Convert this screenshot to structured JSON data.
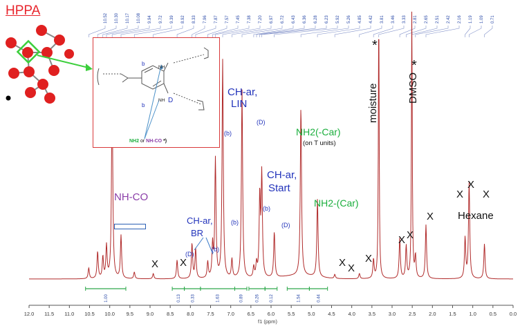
{
  "chart_data": {
    "type": "line",
    "title": "HPPA",
    "xlabel": "f1 (ppm)",
    "xlim": [
      12.0,
      0.0
    ],
    "x_reversed": true,
    "x_ticks": [
      "12.0",
      "11.5",
      "11.0",
      "10.5",
      "10.0",
      "9.5",
      "9.0",
      "8.5",
      "8.0",
      "7.5",
      "7.0",
      "6.5",
      "6.0",
      "5.5",
      "5.0",
      "4.5",
      "4.0",
      "3.5",
      "3.0",
      "2.5",
      "2.0",
      "1.5",
      "1.0",
      "0.5",
      "0.0"
    ],
    "peak_list": [
      "10.52",
      "10.30",
      "10.17",
      "10.08",
      "9.94",
      "9.72",
      "9.39",
      "8.92",
      "8.33",
      "7.96",
      "7.87",
      "7.57",
      "7.45",
      "7.38",
      "7.20",
      "6.97",
      "6.72",
      "6.43",
      "6.36",
      "6.28",
      "6.23",
      "5.92",
      "5.26",
      "4.85",
      "4.42",
      "3.81",
      "3.46",
      "3.33",
      "2.81",
      "2.65",
      "2.51",
      "2.42",
      "2.16",
      "1.19",
      "1.09",
      "0.71"
    ],
    "series": [
      {
        "color": "#b02a2a",
        "peaks": [
          {
            "ppm": 10.52,
            "h": 0.04
          },
          {
            "ppm": 10.3,
            "h": 0.1
          },
          {
            "ppm": 10.17,
            "h": 0.08
          },
          {
            "ppm": 10.08,
            "h": 0.12
          },
          {
            "ppm": 9.94,
            "h": 0.72
          },
          {
            "ppm": 9.72,
            "h": 0.16
          },
          {
            "ppm": 9.39,
            "h": 0.025
          },
          {
            "ppm": 8.92,
            "h": 0.02
          },
          {
            "ppm": 8.33,
            "h": 0.07
          },
          {
            "ppm": 7.96,
            "h": 0.13
          },
          {
            "ppm": 7.87,
            "h": 0.11
          },
          {
            "ppm": 7.57,
            "h": 0.06
          },
          {
            "ppm": 7.45,
            "h": 0.12
          },
          {
            "ppm": 7.38,
            "h": 0.44
          },
          {
            "ppm": 7.2,
            "h": 0.81
          },
          {
            "ppm": 6.97,
            "h": 0.07
          },
          {
            "ppm": 6.72,
            "h": 0.7
          },
          {
            "ppm": 6.43,
            "h": 0.04
          },
          {
            "ppm": 6.36,
            "h": 0.05
          },
          {
            "ppm": 6.28,
            "h": 0.3
          },
          {
            "ppm": 6.23,
            "h": 0.38
          },
          {
            "ppm": 5.92,
            "h": 0.17
          },
          {
            "ppm": 5.26,
            "h": 0.63
          },
          {
            "ppm": 4.85,
            "h": 0.29
          },
          {
            "ppm": 4.42,
            "h": 0.015
          },
          {
            "ppm": 3.81,
            "h": 0.02
          },
          {
            "ppm": 3.46,
            "h": 0.07
          },
          {
            "ppm": 3.33,
            "h": 1.0
          },
          {
            "ppm": 2.81,
            "h": 0.15
          },
          {
            "ppm": 2.65,
            "h": 0.12
          },
          {
            "ppm": 2.51,
            "h": 1.0
          },
          {
            "ppm": 2.42,
            "h": 0.08
          },
          {
            "ppm": 2.16,
            "h": 0.2
          },
          {
            "ppm": 1.19,
            "h": 0.15
          },
          {
            "ppm": 1.09,
            "h": 0.36
          },
          {
            "ppm": 0.71,
            "h": 0.13
          }
        ]
      }
    ],
    "integrals": [
      {
        "from": 10.6,
        "to": 9.6,
        "label": "1.00"
      },
      {
        "from": 8.45,
        "to": 8.15,
        "label": "0.13"
      },
      {
        "from": 8.15,
        "to": 7.75,
        "label": "0.33"
      },
      {
        "from": 7.75,
        "to": 6.9,
        "label": "1.63"
      },
      {
        "from": 6.9,
        "to": 6.6,
        "label": "0.89"
      },
      {
        "from": 6.55,
        "to": 6.15,
        "label": "0.26"
      },
      {
        "from": 6.15,
        "to": 5.85,
        "label": "0.12"
      },
      {
        "from": 5.6,
        "to": 5.05,
        "label": "1.54"
      },
      {
        "from": 5.05,
        "to": 4.6,
        "label": "0.44"
      }
    ]
  },
  "annotations": {
    "title": "HPPA",
    "nh_co": "NH-CO",
    "ch_ar_br_1": "CH-ar,",
    "ch_ar_br_2": "BR",
    "b_small_1": "(b)",
    "d_small_1": "(D)",
    "b_mid": "(b)",
    "ch_ar_lin_1": "CH-ar,",
    "ch_ar_lin_2": "LIN",
    "b_top": "(b)",
    "d_top": "(D)",
    "ch_ar_start_1": "CH-ar,",
    "ch_ar_start_2": "Start",
    "b_start": "(b)",
    "d_start": "(D)",
    "nh2_t_1": "NH2(-Car)",
    "nh2_t_2": "(on T units)",
    "nh2_car": "NH2-(Car)",
    "moisture": "moisture",
    "dmso": "DMSO",
    "star": "*",
    "hexane": "Hexane",
    "x_mark": "X"
  },
  "inset": {
    "b_top": "b",
    "b_bottom": "b",
    "d_label": "D",
    "nh_top": "NH",
    "nh_bottom": "NH",
    "legend_nh2": "NH2",
    "legend_or": "or",
    "legend_nhco": "NH-CO",
    "legend_star": "*)"
  }
}
